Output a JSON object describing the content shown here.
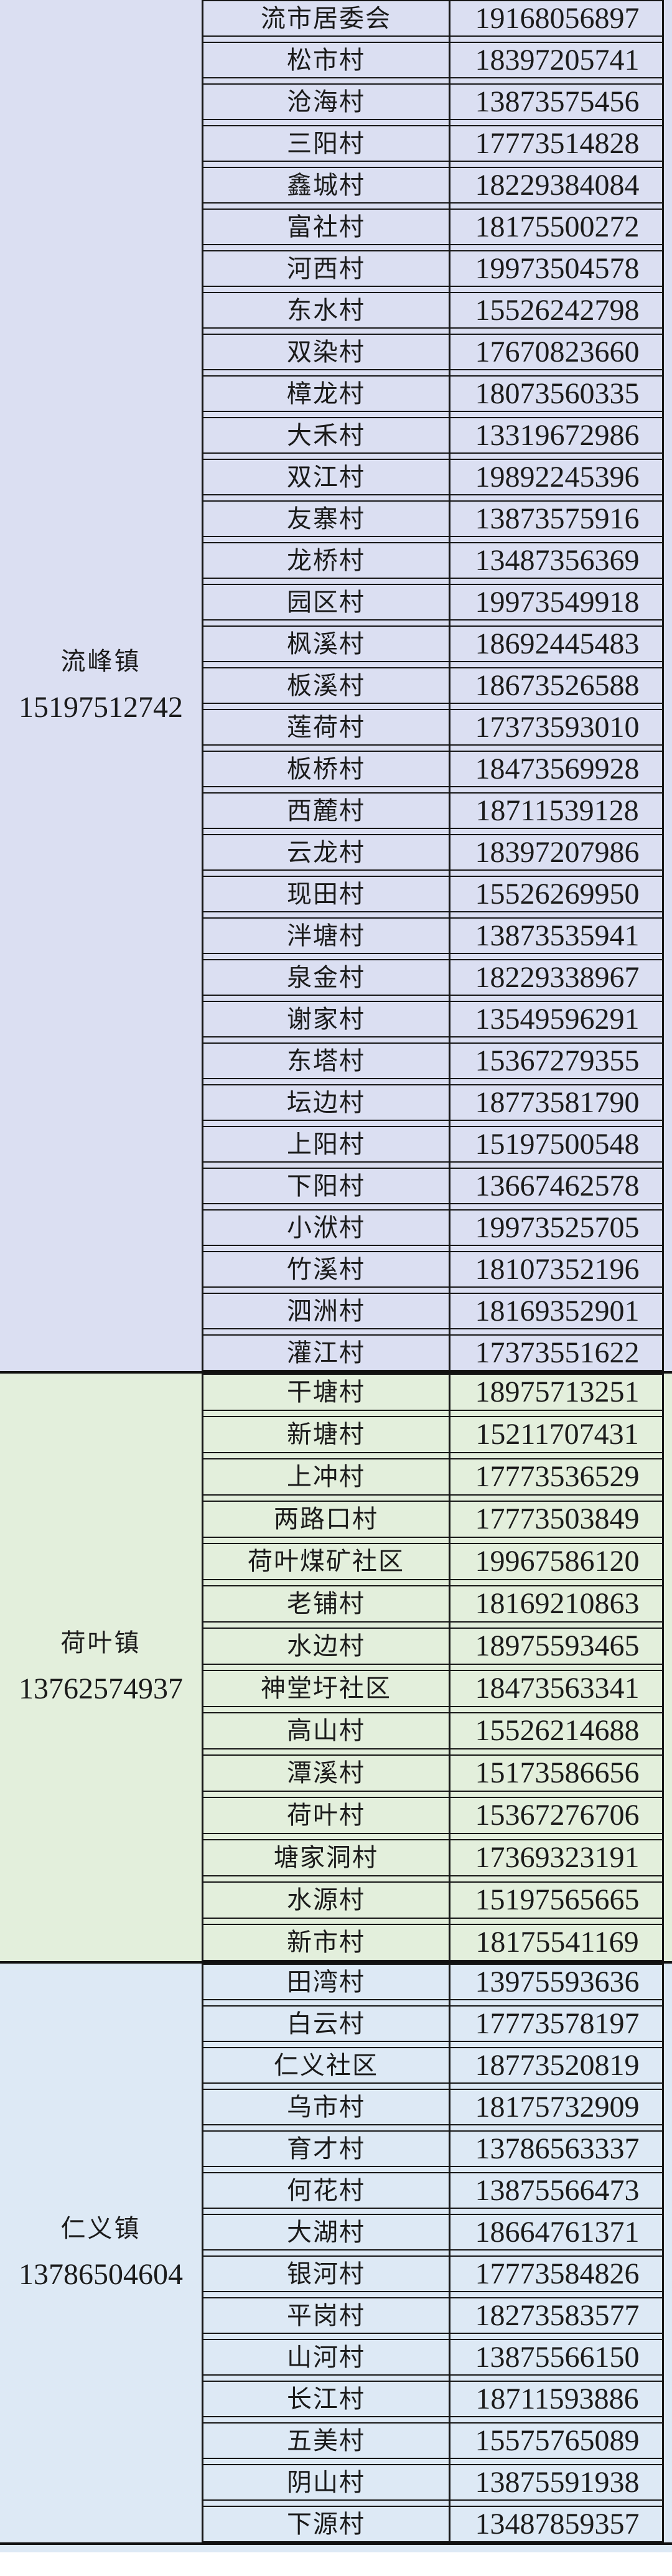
{
  "table": {
    "border_color": "#161616",
    "text_color": "#1b1b1b",
    "sections": [
      {
        "town": "流峰镇",
        "town_phone": "15197512742",
        "bg": "#dbdff2",
        "rows": [
          {
            "village": "流市居委会",
            "phone": "19168056897"
          },
          {
            "village": "松市村",
            "phone": "18397205741"
          },
          {
            "village": "沧海村",
            "phone": "13873575456"
          },
          {
            "village": "三阳村",
            "phone": "17773514828"
          },
          {
            "village": "鑫城村",
            "phone": "18229384084"
          },
          {
            "village": "富社村",
            "phone": "18175500272"
          },
          {
            "village": "河西村",
            "phone": "19973504578"
          },
          {
            "village": "东水村",
            "phone": "15526242798"
          },
          {
            "village": "双染村",
            "phone": "17670823660"
          },
          {
            "village": "樟龙村",
            "phone": "18073560335"
          },
          {
            "village": "大禾村",
            "phone": "13319672986"
          },
          {
            "village": "双江村",
            "phone": "19892245396"
          },
          {
            "village": "友寨村",
            "phone": "13873575916"
          },
          {
            "village": "龙桥村",
            "phone": "13487356369"
          },
          {
            "village": "园区村",
            "phone": "19973549918"
          },
          {
            "village": "枫溪村",
            "phone": "18692445483"
          },
          {
            "village": "板溪村",
            "phone": "18673526588"
          },
          {
            "village": "莲荷村",
            "phone": "17373593010"
          },
          {
            "village": "板桥村",
            "phone": "18473569928"
          },
          {
            "village": "西麓村",
            "phone": "18711539128"
          },
          {
            "village": "云龙村",
            "phone": "18397207986"
          },
          {
            "village": "现田村",
            "phone": "15526269950"
          },
          {
            "village": "泮塘村",
            "phone": "13873535941"
          },
          {
            "village": "泉金村",
            "phone": "18229338967"
          },
          {
            "village": "谢家村",
            "phone": "13549596291"
          },
          {
            "village": "东塔村",
            "phone": "15367279355"
          },
          {
            "village": "坛边村",
            "phone": "18773581790"
          },
          {
            "village": "上阳村",
            "phone": "15197500548"
          },
          {
            "village": "下阳村",
            "phone": "13667462578"
          },
          {
            "village": "小洑村",
            "phone": "19973525705"
          },
          {
            "village": "竹溪村",
            "phone": "18107352196"
          },
          {
            "village": "泗洲村",
            "phone": "18169352901"
          },
          {
            "village": "灌江村",
            "phone": "17373551622"
          }
        ]
      },
      {
        "town": "荷叶镇",
        "town_phone": "13762574937",
        "bg": "#e3efdc",
        "rows": [
          {
            "village": "干塘村",
            "phone": "18975713251"
          },
          {
            "village": "新塘村",
            "phone": "15211707431"
          },
          {
            "village": "上冲村",
            "phone": "17773536529"
          },
          {
            "village": "两路口村",
            "phone": "17773503849"
          },
          {
            "village": "荷叶煤矿社区",
            "phone": "19967586120"
          },
          {
            "village": "老铺村",
            "phone": "18169210863"
          },
          {
            "village": "水边村",
            "phone": "18975593465"
          },
          {
            "village": "神堂圩社区",
            "phone": "18473563341"
          },
          {
            "village": "高山村",
            "phone": "15526214688"
          },
          {
            "village": "潭溪村",
            "phone": "15173586656"
          },
          {
            "village": "荷叶村",
            "phone": "15367276706"
          },
          {
            "village": "塘家洞村",
            "phone": "17369323191"
          },
          {
            "village": "水源村",
            "phone": "15197565665"
          },
          {
            "village": "新市村",
            "phone": "18175541169"
          }
        ]
      },
      {
        "town": "仁义镇",
        "town_phone": "13786504604",
        "bg": "#dde9f5",
        "rows": [
          {
            "village": "田湾村",
            "phone": "13975593636"
          },
          {
            "village": "白云村",
            "phone": "17773578197"
          },
          {
            "village": "仁义社区",
            "phone": "18773520819"
          },
          {
            "village": "乌市村",
            "phone": "18175732909"
          },
          {
            "village": "育才村",
            "phone": "13786563337"
          },
          {
            "village": "何花村",
            "phone": "13875566473"
          },
          {
            "village": "大湖村",
            "phone": "18664761371"
          },
          {
            "village": "银河村",
            "phone": "17773584826"
          },
          {
            "village": "平岗村",
            "phone": "18273583577"
          },
          {
            "village": "山河村",
            "phone": "13875566150"
          },
          {
            "village": "长江村",
            "phone": "18711593886"
          },
          {
            "village": "五美村",
            "phone": "15575765089"
          },
          {
            "village": "阴山村",
            "phone": "13875591938"
          },
          {
            "village": "下源村",
            "phone": "13487859357"
          }
        ]
      }
    ]
  }
}
